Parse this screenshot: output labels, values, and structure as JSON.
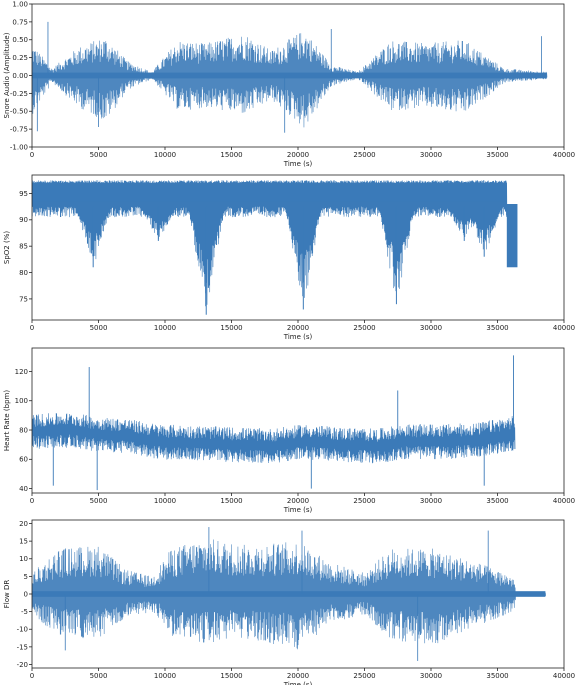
{
  "chart_data": [
    {
      "type": "line",
      "id": "snore",
      "xlabel": "Time (s)",
      "ylabel": "Snore Audio (Amplitude)",
      "xlim": [
        0,
        40000
      ],
      "ylim": [
        -1.0,
        1.0
      ],
      "xticks": [
        "0",
        "5000",
        "10000",
        "15000",
        "20000",
        "25000",
        "30000",
        "35000",
        "40000"
      ],
      "yticks": [
        "-1.00",
        "-0.75",
        "-0.50",
        "-0.25",
        "0.00",
        "0.25",
        "0.50",
        "0.75",
        "1.00"
      ],
      "ytick_values": [
        -1.0,
        -0.75,
        -0.5,
        -0.25,
        0.0,
        0.25,
        0.5,
        0.75,
        1.0
      ],
      "x_end": 38700,
      "baseline": 0.0,
      "burst_segments": [
        [
          0,
          1200
        ],
        [
          3500,
          7200
        ],
        [
          9800,
          13500
        ],
        [
          14000,
          18000
        ],
        [
          18800,
          22500
        ],
        [
          25200,
          29500
        ],
        [
          30500,
          35500
        ]
      ],
      "extremes": [
        {
          "x": 400,
          "value": -0.78
        },
        {
          "x": 1200,
          "value": 0.75
        },
        {
          "x": 5000,
          "value": -0.72
        },
        {
          "x": 19000,
          "value": -0.8
        },
        {
          "x": 22500,
          "value": 0.65
        },
        {
          "x": 38300,
          "value": 0.55
        }
      ],
      "envelope": [
        {
          "x": 0,
          "high": 0.45,
          "low": -0.55
        },
        {
          "x": 1500,
          "high": 0.1,
          "low": -0.1
        },
        {
          "x": 3500,
          "high": 0.4,
          "low": -0.45
        },
        {
          "x": 5500,
          "high": 0.55,
          "low": -0.65
        },
        {
          "x": 7200,
          "high": 0.2,
          "low": -0.2
        },
        {
          "x": 9000,
          "high": 0.05,
          "low": -0.05
        },
        {
          "x": 11000,
          "high": 0.5,
          "low": -0.5
        },
        {
          "x": 13000,
          "high": 0.45,
          "low": -0.45
        },
        {
          "x": 16000,
          "high": 0.6,
          "low": -0.55
        },
        {
          "x": 18000,
          "high": 0.35,
          "low": -0.35
        },
        {
          "x": 20500,
          "high": 0.65,
          "low": -0.75
        },
        {
          "x": 22500,
          "high": 0.15,
          "low": -0.15
        },
        {
          "x": 24500,
          "high": 0.05,
          "low": -0.05
        },
        {
          "x": 27000,
          "high": 0.5,
          "low": -0.5
        },
        {
          "x": 29500,
          "high": 0.45,
          "low": -0.45
        },
        {
          "x": 32500,
          "high": 0.5,
          "low": -0.55
        },
        {
          "x": 35500,
          "high": 0.1,
          "low": -0.1
        },
        {
          "x": 38700,
          "high": 0.05,
          "low": -0.05
        }
      ]
    },
    {
      "type": "line",
      "id": "spo2",
      "xlabel": "Time (s)",
      "ylabel": "SpO2 (%)",
      "xlim": [
        0,
        40000
      ],
      "ylim": [
        71,
        98.5
      ],
      "xticks": [
        "0",
        "5000",
        "10000",
        "15000",
        "20000",
        "25000",
        "30000",
        "35000",
        "40000"
      ],
      "yticks": [
        "75",
        "80",
        "85",
        "90",
        "95"
      ],
      "ytick_values": [
        75,
        80,
        85,
        90,
        95
      ],
      "x_end": 36500,
      "baseline": 94.5,
      "band": [
        92.5,
        97.5
      ],
      "dips": [
        {
          "x": 4600,
          "value": 81
        },
        {
          "x": 13100,
          "value": 72
        },
        {
          "x": 20400,
          "value": 73
        },
        {
          "x": 27400,
          "value": 74
        },
        {
          "x": 9500,
          "value": 86
        },
        {
          "x": 32500,
          "value": 86
        },
        {
          "x": 34000,
          "value": 83
        }
      ],
      "tail_block": {
        "x_start": 35700,
        "x_end": 36500,
        "high": 93,
        "low": 81
      }
    },
    {
      "type": "line",
      "id": "heart_rate",
      "xlabel": "Time (s)",
      "ylabel": "Heart Rate (bpm)",
      "xlim": [
        0,
        40000
      ],
      "ylim": [
        37,
        136
      ],
      "xticks": [
        "0",
        "5000",
        "10000",
        "15000",
        "20000",
        "25000",
        "30000",
        "35000",
        "40000"
      ],
      "yticks": [
        "40",
        "60",
        "80",
        "100",
        "120"
      ],
      "ytick_values": [
        40,
        60,
        80,
        100,
        120
      ],
      "x_end": 36300,
      "trend": [
        {
          "x": 0,
          "value": 79
        },
        {
          "x": 3000,
          "value": 80
        },
        {
          "x": 5000,
          "value": 77
        },
        {
          "x": 7000,
          "value": 76
        },
        {
          "x": 9500,
          "value": 72
        },
        {
          "x": 12500,
          "value": 71
        },
        {
          "x": 15000,
          "value": 70
        },
        {
          "x": 18000,
          "value": 69
        },
        {
          "x": 20500,
          "value": 72
        },
        {
          "x": 23000,
          "value": 70
        },
        {
          "x": 26000,
          "value": 69
        },
        {
          "x": 28000,
          "value": 72
        },
        {
          "x": 31000,
          "value": 72
        },
        {
          "x": 33500,
          "value": 73
        },
        {
          "x": 36300,
          "value": 78
        }
      ],
      "spikes": [
        {
          "x": 4300,
          "value": 123
        },
        {
          "x": 4900,
          "value": 39
        },
        {
          "x": 36200,
          "value": 131
        },
        {
          "x": 1600,
          "value": 42
        },
        {
          "x": 21000,
          "value": 40
        },
        {
          "x": 27500,
          "value": 107
        },
        {
          "x": 34000,
          "value": 42
        }
      ]
    },
    {
      "type": "line",
      "id": "flow_dr",
      "xlabel": "Time (s)",
      "ylabel": "Flow DR",
      "xlim": [
        0,
        40000
      ],
      "ylim": [
        -21,
        21
      ],
      "xticks": [
        "0",
        "5000",
        "10000",
        "15000",
        "20000",
        "25000",
        "30000",
        "35000",
        "40000"
      ],
      "yticks": [
        "-20",
        "-15",
        "-10",
        "-5",
        "0",
        "5",
        "10",
        "15",
        "20"
      ],
      "ytick_values": [
        -20,
        -15,
        -10,
        -5,
        0,
        5,
        10,
        15,
        20
      ],
      "x_end": 38600,
      "baseline": 0,
      "envelope": [
        {
          "x": 0,
          "high": 6,
          "low": -6
        },
        {
          "x": 2000,
          "high": 13,
          "low": -12
        },
        {
          "x": 5000,
          "high": 14,
          "low": -13
        },
        {
          "x": 7000,
          "high": 7,
          "low": -7
        },
        {
          "x": 9000,
          "high": 5,
          "low": -5
        },
        {
          "x": 10500,
          "high": 13,
          "low": -12
        },
        {
          "x": 13000,
          "high": 16,
          "low": -14
        },
        {
          "x": 16000,
          "high": 14,
          "low": -13
        },
        {
          "x": 20000,
          "high": 15,
          "low": -16
        },
        {
          "x": 22500,
          "high": 9,
          "low": -8
        },
        {
          "x": 25000,
          "high": 6,
          "low": -6
        },
        {
          "x": 27000,
          "high": 13,
          "low": -13
        },
        {
          "x": 30000,
          "high": 13,
          "low": -15
        },
        {
          "x": 33500,
          "high": 9,
          "low": -9
        },
        {
          "x": 36200,
          "high": 5,
          "low": -5
        },
        {
          "x": 36400,
          "high": 0.6,
          "low": -0.6
        },
        {
          "x": 38600,
          "high": 0.6,
          "low": -0.6
        }
      ],
      "extremes": [
        {
          "x": 13300,
          "value": 19
        },
        {
          "x": 2500,
          "value": -16
        },
        {
          "x": 29000,
          "value": -19
        },
        {
          "x": 34300,
          "value": 18
        },
        {
          "x": 20300,
          "value": 18
        }
      ]
    }
  ],
  "colors": {
    "line": "#3b7ab8",
    "axis": "#222222",
    "background": "#ffffff"
  }
}
